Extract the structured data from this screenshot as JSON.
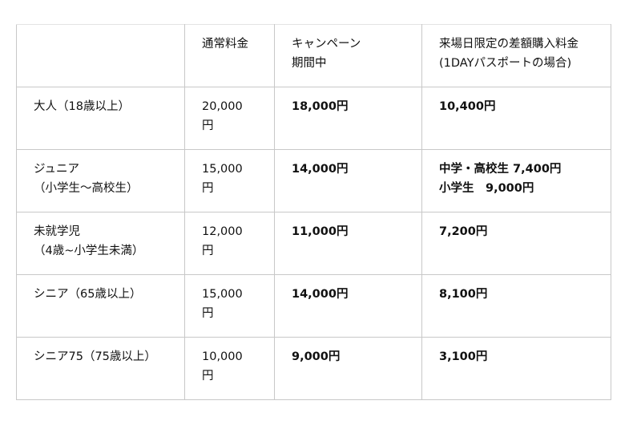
{
  "header": {
    "col0": "",
    "col1": "通常料金",
    "col2": [
      "キャンペーン",
      "期間中"
    ],
    "col3": [
      "来場日限定の差額購入料金",
      "(1DAYパスポートの場合)"
    ]
  },
  "rows": [
    {
      "category": [
        "大人（18歳以上）"
      ],
      "regular": "20,000円",
      "campaign": "18,000円",
      "upgrade": [
        "10,400円"
      ]
    },
    {
      "category": [
        "ジュニア",
        "（小学生～高校生）"
      ],
      "regular": "15,000円",
      "campaign": "14,000円",
      "upgrade": [
        "中学・高校生 7,400円",
        "小学生　9,000円"
      ]
    },
    {
      "category": [
        "未就学児",
        "（4歳~小学生未満）"
      ],
      "regular": "12,000円",
      "campaign": "11,000円",
      "upgrade": [
        "7,200円"
      ]
    },
    {
      "category": [
        "シニア（65歳以上）"
      ],
      "regular": "15,000円",
      "campaign": "14,000円",
      "upgrade": [
        "8,100円"
      ]
    },
    {
      "category": [
        "シニア75（75歳以上）"
      ],
      "regular": "10,000円",
      "campaign": "9,000円",
      "upgrade": [
        "3,100円"
      ]
    }
  ]
}
